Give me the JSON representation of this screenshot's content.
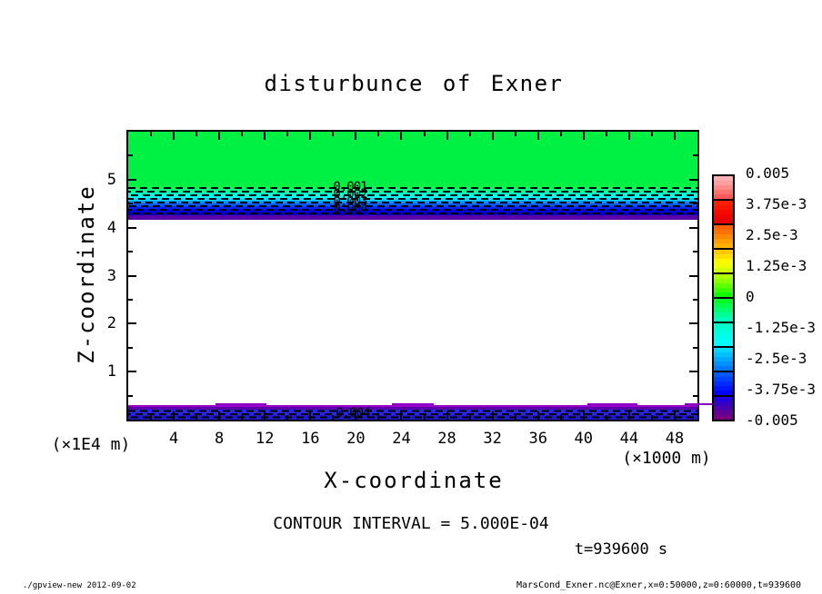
{
  "title": "disturbunce of Exner",
  "axes": {
    "x_label": "X-coordinate",
    "x_unit": "(×1000 m)",
    "x_ticks": [
      4,
      8,
      12,
      16,
      20,
      24,
      28,
      32,
      36,
      40,
      44,
      48
    ],
    "y_label": "Z-coordinate",
    "y_unit": "(×1E4 m)",
    "y_ticks": [
      1,
      2,
      3,
      4,
      5
    ]
  },
  "contour_labels": {
    "upper": [
      "0.001",
      "0.002",
      "0.003",
      "0.004"
    ],
    "lower": "0.004"
  },
  "annotations": {
    "contour_interval": "CONTOUR INTERVAL = 5.000E-04",
    "time": "t=939600 s"
  },
  "footer": {
    "left": "./gpview-new  2012-09-02",
    "right": "MarsCond_Exner.nc@Exner,x=0:50000,z=0:60000,t=939600"
  },
  "colorbar": {
    "labels": [
      "0.005",
      "3.75e-3",
      "2.5e-3",
      "1.25e-3",
      "0",
      "-1.25e-3",
      "-2.5e-3",
      "-3.75e-3",
      "-0.005"
    ],
    "blocks": [
      [
        "#ffb0b0",
        "#ffa0a0",
        "#ff8a8a",
        "#ff7272",
        "#ff5a5a"
      ],
      [
        "#ff2000",
        "#fb1400",
        "#f60a00",
        "#f00000",
        "#e60000"
      ],
      [
        "#ff6000",
        "#ff7400",
        "#ff8800",
        "#ff9c00",
        "#ffb000"
      ],
      [
        "#ffc800",
        "#ffe000",
        "#fff800",
        "#eeff00",
        "#d4ff00"
      ],
      [
        "#b0ff00",
        "#8aff00",
        "#62ff00",
        "#38ff00",
        "#10ff00"
      ],
      [
        "#00ff28",
        "#00ff4c",
        "#00ff70",
        "#00ff94",
        "#00ffb8"
      ],
      [
        "#00ffc8",
        "#00ffd6",
        "#00ffe4",
        "#00fff2",
        "#00ffff"
      ],
      [
        "#00d8ff",
        "#00c0ff",
        "#00a8ff",
        "#0090ff",
        "#0078ff"
      ],
      [
        "#0058ff",
        "#0042ff",
        "#002cff",
        "#0016ff",
        "#0000ff"
      ],
      [
        "#2000e0",
        "#3400c4",
        "#4a00aa",
        "#600096",
        "#760084"
      ]
    ]
  },
  "plot_colors": {
    "top_region": "#00f044",
    "upper_band_steps": [
      "#00f848",
      "#00ff86",
      "#00ffc2",
      "#00fff6",
      "#00d2ff",
      "#0096ff",
      "#005aff",
      "#0022ff",
      "#0000e0",
      "#0000b8"
    ],
    "upper_band_stripe": "#5a00a8",
    "lower_band": {
      "edge": "#9c00cc",
      "bump": "#8a00c4",
      "stripe": "#5a00a8",
      "blue1": "#2828e6",
      "blue2": "#1c1cce"
    },
    "dash": "#000000"
  },
  "chart_data": {
    "type": "heatmap",
    "title": "disturbunce of Exner",
    "xlabel": "X-coordinate",
    "x_unit": "×1000 m",
    "ylabel": "Z-coordinate",
    "y_unit": "×1E4 m",
    "xlim": [
      0,
      50
    ],
    "ylim": [
      0,
      6
    ],
    "x_ticks": [
      4,
      8,
      12,
      16,
      20,
      24,
      28,
      32,
      36,
      40,
      44,
      48
    ],
    "y_ticks": [
      1,
      2,
      3,
      4,
      5
    ],
    "grid": false,
    "legend_position": "right-colorbar",
    "contour_interval": 0.0005,
    "colorbar_ticks": [
      0.005,
      0.00375,
      0.0025,
      0.00125,
      0,
      -0.00125,
      -0.0025,
      -0.00375,
      -0.005
    ],
    "colorbar_range": [
      -0.005,
      0.005
    ],
    "features": [
      {
        "region": "z ≈ 4.7 to 6.0, all x",
        "fill": "solid green",
        "value": "≈ 0 to -0.001"
      },
      {
        "region": "z ≈ 4.3 to 4.7, all x",
        "fill": "green→cyan→blue→dark-blue gradient topped band with ~8 horizontal dashed black contour lines and purple stripe at its base",
        "contour_label_values": [
          0.001,
          0.002,
          0.003,
          0.004
        ],
        "labels_location": "stacked near x≈19-21"
      },
      {
        "region": "z ≈ 0.4 to 4.2, all x",
        "fill": "white (outside colorbar range)"
      },
      {
        "region": "z ≈ 0 to 0.4, all x",
        "fill": "purple stripe over blue band with dashed black contour lines",
        "contour_label_values": [
          0.004
        ],
        "labels_location": "near x≈19-21"
      }
    ]
  }
}
